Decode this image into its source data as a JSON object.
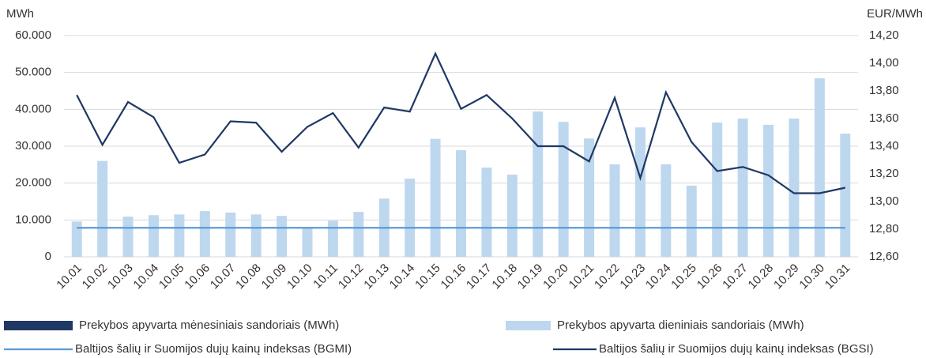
{
  "chart_data": {
    "type": "combo",
    "y_label": "MWh",
    "y2_label": "EUR/MWh",
    "categories": [
      "10.01",
      "10.02",
      "10.03",
      "10.04",
      "10.05",
      "10.06",
      "10.07",
      "10.08",
      "10.09",
      "10.10",
      "10.11",
      "10.12",
      "10.13",
      "10.14",
      "10.15",
      "10.16",
      "10.17",
      "10.18",
      "10.19",
      "10.20",
      "10.21",
      "10.22",
      "10.23",
      "10.24",
      "10.25",
      "10.26",
      "10.27",
      "10.28",
      "10.29",
      "10.30",
      "10.31"
    ],
    "series": [
      {
        "name": "Prekybos apyvarta mėnesiniais sandoriais (MWh)",
        "type": "bar",
        "color": "#1f3864",
        "values": [
          null,
          null,
          null,
          null,
          null,
          null,
          null,
          null,
          null,
          null,
          null,
          null,
          null,
          null,
          null,
          null,
          null,
          null,
          null,
          null,
          null,
          null,
          null,
          null,
          null,
          null,
          null,
          null,
          null,
          null,
          null
        ]
      },
      {
        "name": "Prekybos apyvarta dieniniais sandoriais (MWh)",
        "type": "bar",
        "color": "#bdd7ee",
        "values": [
          9600,
          26000,
          10900,
          11300,
          11500,
          12400,
          12000,
          11500,
          11100,
          8000,
          9800,
          12200,
          15800,
          21200,
          32000,
          28900,
          24200,
          22300,
          39400,
          36600,
          32100,
          25100,
          35100,
          25100,
          19300,
          36400,
          37500,
          35800,
          37500,
          48400,
          33400
        ]
      },
      {
        "name": "Baltijos šalių ir Suomijos dujų kainų indeksas (BGMI)",
        "type": "line",
        "axis": "y2",
        "color": "#5b9bd5",
        "values": [
          12.81,
          12.81,
          12.81,
          12.81,
          12.81,
          12.81,
          12.81,
          12.81,
          12.81,
          12.81,
          12.81,
          12.81,
          12.81,
          12.81,
          12.81,
          12.81,
          12.81,
          12.81,
          12.81,
          12.81,
          12.81,
          12.81,
          12.81,
          12.81,
          12.81,
          12.81,
          12.81,
          12.81,
          12.81,
          12.81,
          12.81
        ]
      },
      {
        "name": "Baltijos šalių ir Suomijos dujų kainų indeksas (BGSI)",
        "type": "line",
        "axis": "y2",
        "color": "#1f3864",
        "values": [
          13.77,
          13.41,
          13.72,
          13.61,
          13.28,
          13.34,
          13.58,
          13.57,
          13.36,
          13.54,
          13.64,
          13.39,
          13.68,
          13.65,
          14.07,
          13.67,
          13.77,
          13.6,
          13.4,
          13.4,
          13.29,
          13.75,
          13.17,
          13.79,
          13.43,
          13.22,
          13.25,
          13.19,
          13.06,
          13.06,
          13.1
        ]
      }
    ],
    "ylim": [
      0,
      60000
    ],
    "yticks": [
      0,
      {
        "value": 10000,
        "label": "10.000"
      },
      {
        "value": 20000,
        "label": "20.000"
      },
      {
        "value": 30000,
        "label": "30.000"
      },
      {
        "value": 40000,
        "label": "40.000"
      },
      {
        "value": 50000,
        "label": "50.000"
      },
      {
        "value": 60000,
        "label": "60.000"
      }
    ],
    "y2lim": [
      12.6,
      14.2
    ],
    "y2ticks": [
      {
        "value": 12.6,
        "label": "12,60"
      },
      {
        "value": 12.8,
        "label": "12,80"
      },
      {
        "value": 13.0,
        "label": "13,00"
      },
      {
        "value": 13.2,
        "label": "13,20"
      },
      {
        "value": 13.4,
        "label": "13,40"
      },
      {
        "value": 13.6,
        "label": "13,60"
      },
      {
        "value": 13.8,
        "label": "13,80"
      },
      {
        "value": 14.0,
        "label": "14,00"
      },
      {
        "value": 14.2,
        "label": "14,20"
      }
    ],
    "grid": true,
    "legend": "bottom"
  }
}
